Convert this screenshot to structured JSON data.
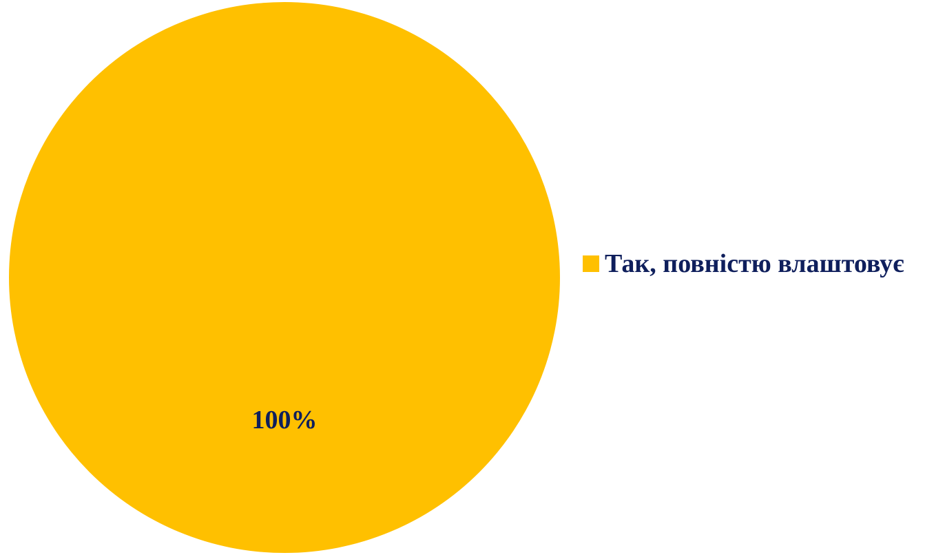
{
  "chart_data": {
    "type": "pie",
    "categories": [
      "Так, повністю влаштовує"
    ],
    "values": [
      100
    ],
    "data_labels": [
      "100%"
    ],
    "legend_position": "right",
    "colors": {
      "slices": [
        "#FFC000"
      ],
      "text": "#0F1F5C"
    }
  },
  "legend": {
    "items": [
      {
        "label": "Так, повністю влаштовує"
      }
    ]
  }
}
